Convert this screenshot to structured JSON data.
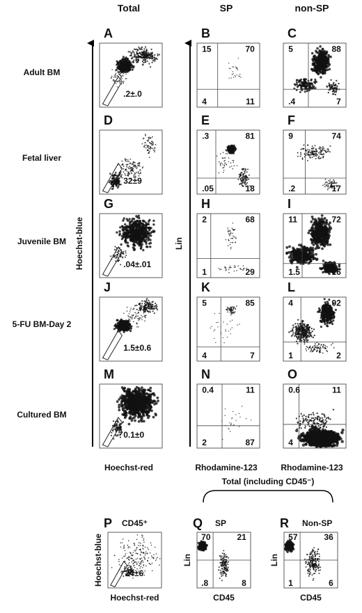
{
  "column_headers": [
    "Total",
    "SP",
    "non-SP"
  ],
  "y_axis_labels": [
    "Hoechst-blue",
    "Lin"
  ],
  "x_axis_labels": [
    "Hoechst-red",
    "Rhodamine-123",
    "Rhodamine-123"
  ],
  "rows": [
    {
      "label": "Adult BM",
      "panels": [
        {
          "letter": "A",
          "gate": ".2±.0"
        },
        {
          "letter": "B",
          "quadrants": {
            "top_left": "15",
            "top_right": "70",
            "bottom_left": "4",
            "bottom_right": "11"
          }
        },
        {
          "letter": "C",
          "quadrants": {
            "top_left": "5",
            "top_right": "88",
            "bottom_left": ".4",
            "bottom_right": "7"
          }
        }
      ]
    },
    {
      "label": "Fetal liver",
      "panels": [
        {
          "letter": "D",
          "gate": "32±9"
        },
        {
          "letter": "E",
          "quadrants": {
            "top_left": ".3",
            "top_right": "81",
            "bottom_left": ".05",
            "bottom_right": "18"
          }
        },
        {
          "letter": "F",
          "quadrants": {
            "top_left": "9",
            "top_right": "74",
            "bottom_left": ".2",
            "bottom_right": "17"
          }
        }
      ]
    },
    {
      "label": "Juvenile BM",
      "panels": [
        {
          "letter": "G",
          "gate": ".04±.01"
        },
        {
          "letter": "H",
          "quadrants": {
            "top_left": "2",
            "top_right": "68",
            "bottom_left": "1",
            "bottom_right": "29"
          }
        },
        {
          "letter": "I",
          "quadrants": {
            "top_left": "11",
            "top_right": "72",
            "bottom_left": "1.5",
            "bottom_right": "16"
          }
        }
      ]
    },
    {
      "label": "5-FU BM-Day 2",
      "panels": [
        {
          "letter": "J",
          "gate": "1.5±0.6"
        },
        {
          "letter": "K",
          "quadrants": {
            "top_left": "5",
            "top_right": "85",
            "bottom_left": "4",
            "bottom_right": "7"
          }
        },
        {
          "letter": "L",
          "quadrants": {
            "top_left": "4",
            "top_right": "92",
            "bottom_left": "1",
            "bottom_right": "2"
          }
        }
      ]
    },
    {
      "label": "Cultured BM",
      "panels": [
        {
          "letter": "M",
          "gate": "0.1±0"
        },
        {
          "letter": "N",
          "quadrants": {
            "top_left": "0.4",
            "top_right": "11",
            "bottom_left": "2",
            "bottom_right": "87"
          }
        },
        {
          "letter": "O",
          "quadrants": {
            "top_left": "0.6",
            "top_right": "11",
            "bottom_left": "4"
          }
        }
      ]
    }
  ],
  "bottom": {
    "bracket_label": "Total (including CD45⁻)",
    "panels": [
      {
        "letter": "P",
        "title": "CD45⁺",
        "gate": "24±6",
        "y_label": "Hoechst-blue",
        "x_label": "Hoechst-red"
      },
      {
        "letter": "Q",
        "title": "SP",
        "y_label": "Lin",
        "x_label": "CD45",
        "quadrants": {
          "top_left": "70",
          "top_right": "21",
          "bottom_left": ".8",
          "bottom_right": "8"
        }
      },
      {
        "letter": "R",
        "title": "Non-SP",
        "y_label": "Lin",
        "x_label": "CD45",
        "quadrants": {
          "top_left": "57",
          "top_right": "36",
          "bottom_left": "1",
          "bottom_right": "6"
        }
      }
    ]
  }
}
